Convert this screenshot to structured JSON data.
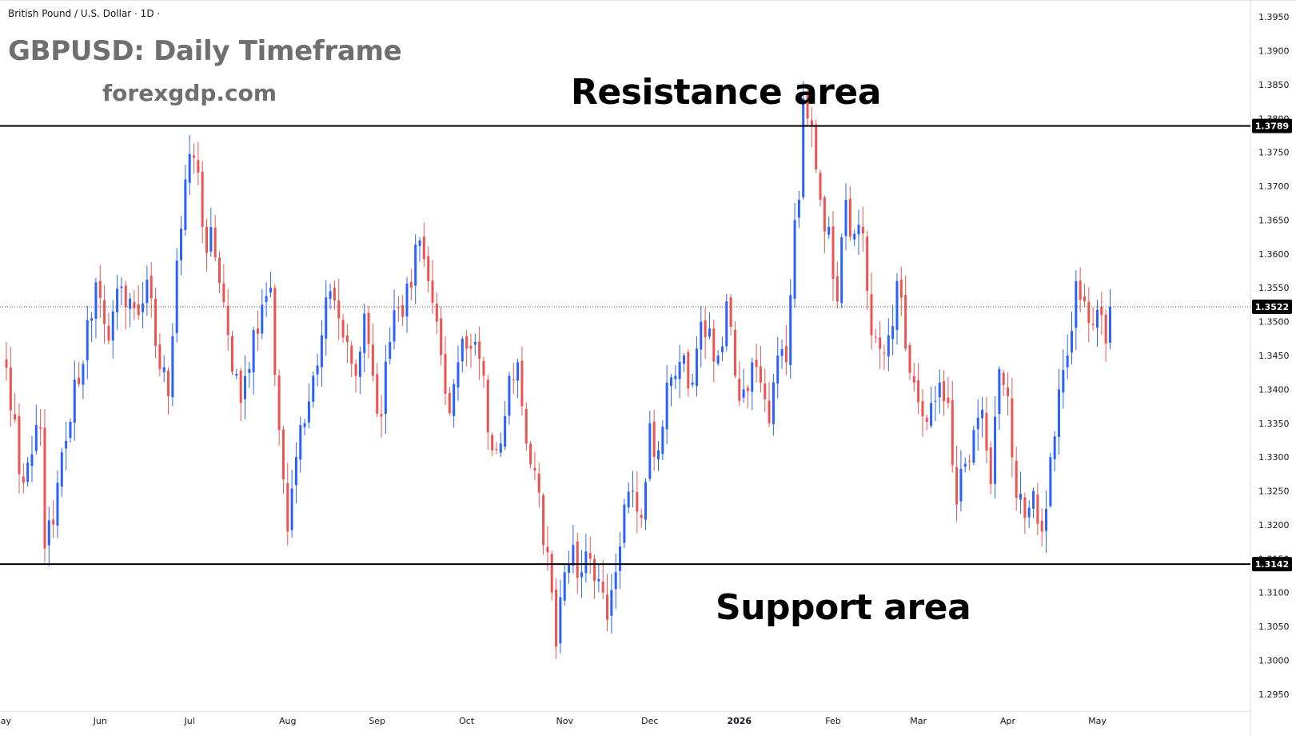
{
  "header": {
    "symbol_line": "British Pound / U.S. Dollar · 1D ·",
    "title": "GBPUSD: Daily Timeframe",
    "watermark": "forexgdp.com"
  },
  "annotations": {
    "resistance_label": "Resistance area",
    "support_label": "Support area"
  },
  "colors": {
    "up": "#2962ff",
    "down": "#ef5350",
    "level_line": "#000000",
    "price_line": "#555555",
    "grid_border": "#e0e3eb",
    "axis_text": "#131722"
  },
  "chart_data": {
    "type": "candlestick",
    "title": "GBPUSD: Daily Timeframe",
    "xlabel": "",
    "ylabel": "",
    "ylim": [
      1.2925,
      1.3975
    ],
    "grid": false,
    "y_ticks": [
      "1.2950",
      "1.3000",
      "1.3050",
      "1.3100",
      "1.3150",
      "1.3200",
      "1.3250",
      "1.3300",
      "1.3350",
      "1.3400",
      "1.3450",
      "1.3500",
      "1.3550",
      "1.3600",
      "1.3650",
      "1.3700",
      "1.3750",
      "1.3800",
      "1.3850",
      "1.3900",
      "1.3950"
    ],
    "x_ticks": [
      {
        "label": "May",
        "index": -1,
        "bold": false
      },
      {
        "label": "Jun",
        "index": 22,
        "bold": false
      },
      {
        "label": "Jul",
        "index": 43,
        "bold": false
      },
      {
        "label": "Aug",
        "index": 66,
        "bold": false
      },
      {
        "label": "Sep",
        "index": 87,
        "bold": false
      },
      {
        "label": "Oct",
        "index": 108,
        "bold": false
      },
      {
        "label": "Nov",
        "index": 131,
        "bold": false
      },
      {
        "label": "Dec",
        "index": 151,
        "bold": false
      },
      {
        "label": "2026",
        "index": 172,
        "bold": true
      },
      {
        "label": "Feb",
        "index": 194,
        "bold": false
      },
      {
        "label": "Mar",
        "index": 214,
        "bold": false
      },
      {
        "label": "Apr",
        "index": 235,
        "bold": false
      },
      {
        "label": "May",
        "index": 256,
        "bold": false
      }
    ],
    "levels": [
      {
        "name": "resistance",
        "value": 1.3789,
        "label": "1.3789"
      },
      {
        "name": "support",
        "value": 1.3142,
        "label": "1.3142"
      }
    ],
    "last_price": {
      "value": 1.3522,
      "label": "1.3522"
    },
    "anchors": [
      [
        0,
        1.3432
      ],
      [
        4,
        1.3262
      ],
      [
        8,
        1.3342
      ],
      [
        9,
        1.3165
      ],
      [
        12,
        1.3262
      ],
      [
        15,
        1.3352
      ],
      [
        19,
        1.3502
      ],
      [
        21,
        1.3558
      ],
      [
        24,
        1.3472
      ],
      [
        27,
        1.3552
      ],
      [
        30,
        1.352
      ],
      [
        33,
        1.3562
      ],
      [
        36,
        1.343
      ],
      [
        38,
        1.339
      ],
      [
        40,
        1.359
      ],
      [
        42,
        1.371
      ],
      [
        44,
        1.3742
      ],
      [
        46,
        1.364
      ],
      [
        49,
        1.3595
      ],
      [
        52,
        1.348
      ],
      [
        55,
        1.338
      ],
      [
        57,
        1.343
      ],
      [
        60,
        1.3525
      ],
      [
        62,
        1.355
      ],
      [
        64,
        1.334
      ],
      [
        66,
        1.319
      ],
      [
        68,
        1.33
      ],
      [
        70,
        1.335
      ],
      [
        72,
        1.342
      ],
      [
        74,
        1.348
      ],
      [
        76,
        1.3545
      ],
      [
        78,
        1.3505
      ],
      [
        80,
        1.347
      ],
      [
        82,
        1.342
      ],
      [
        84,
        1.3512
      ],
      [
        86,
        1.342
      ],
      [
        88,
        1.336
      ],
      [
        90,
        1.347
      ],
      [
        92,
        1.352
      ],
      [
        95,
        1.355
      ],
      [
        97,
        1.362
      ],
      [
        99,
        1.356
      ],
      [
        101,
        1.35
      ],
      [
        104,
        1.3365
      ],
      [
        106,
        1.344
      ],
      [
        108,
        1.346
      ],
      [
        110,
        1.347
      ],
      [
        112,
        1.342
      ],
      [
        114,
        1.331
      ],
      [
        116,
        1.332
      ],
      [
        118,
        1.342
      ],
      [
        120,
        1.344
      ],
      [
        122,
        1.332
      ],
      [
        124,
        1.328
      ],
      [
        126,
        1.317
      ],
      [
        128,
        1.31
      ],
      [
        129,
        1.302
      ],
      [
        131,
        1.313
      ],
      [
        133,
        1.317
      ],
      [
        135,
        1.313
      ],
      [
        137,
        1.315
      ],
      [
        139,
        1.312
      ],
      [
        141,
        1.306
      ],
      [
        143,
        1.313
      ],
      [
        145,
        1.323
      ],
      [
        147,
        1.325
      ],
      [
        149,
        1.321
      ],
      [
        151,
        1.335
      ],
      [
        153,
        1.331
      ],
      [
        155,
        1.341
      ],
      [
        157,
        1.342
      ],
      [
        159,
        1.345
      ],
      [
        161,
        1.341
      ],
      [
        163,
        1.35
      ],
      [
        165,
        1.349
      ],
      [
        167,
        1.345
      ],
      [
        169,
        1.353
      ],
      [
        171,
        1.342
      ],
      [
        173,
        1.34
      ],
      [
        175,
        1.344
      ],
      [
        177,
        1.341
      ],
      [
        179,
        1.335
      ],
      [
        181,
        1.345
      ],
      [
        183,
        1.344
      ],
      [
        185,
        1.365
      ],
      [
        186,
        1.368
      ],
      [
        187,
        1.383
      ],
      [
        188,
        1.38
      ],
      [
        189,
        1.379
      ],
      [
        191,
        1.368
      ],
      [
        193,
        1.364
      ],
      [
        195,
        1.353
      ],
      [
        197,
        1.368
      ],
      [
        199,
        1.363
      ],
      [
        201,
        1.363
      ],
      [
        203,
        1.348
      ],
      [
        205,
        1.346
      ],
      [
        207,
        1.348
      ],
      [
        209,
        1.356
      ],
      [
        211,
        1.346
      ],
      [
        213,
        1.341
      ],
      [
        215,
        1.336
      ],
      [
        217,
        1.338
      ],
      [
        219,
        1.341
      ],
      [
        221,
        1.338
      ],
      [
        223,
        1.323
      ],
      [
        225,
        1.329
      ],
      [
        227,
        1.334
      ],
      [
        229,
        1.337
      ],
      [
        231,
        1.326
      ],
      [
        233,
        1.343
      ],
      [
        235,
        1.339
      ],
      [
        237,
        1.324
      ],
      [
        239,
        1.321
      ],
      [
        241,
        1.325
      ],
      [
        243,
        1.319
      ],
      [
        245,
        1.33
      ],
      [
        247,
        1.34
      ],
      [
        249,
        1.345
      ],
      [
        251,
        1.356
      ],
      [
        253,
        1.353
      ],
      [
        255,
        1.3495
      ],
      [
        257,
        1.351
      ],
      [
        258,
        1.3468
      ],
      [
        259,
        1.3522
      ]
    ]
  }
}
